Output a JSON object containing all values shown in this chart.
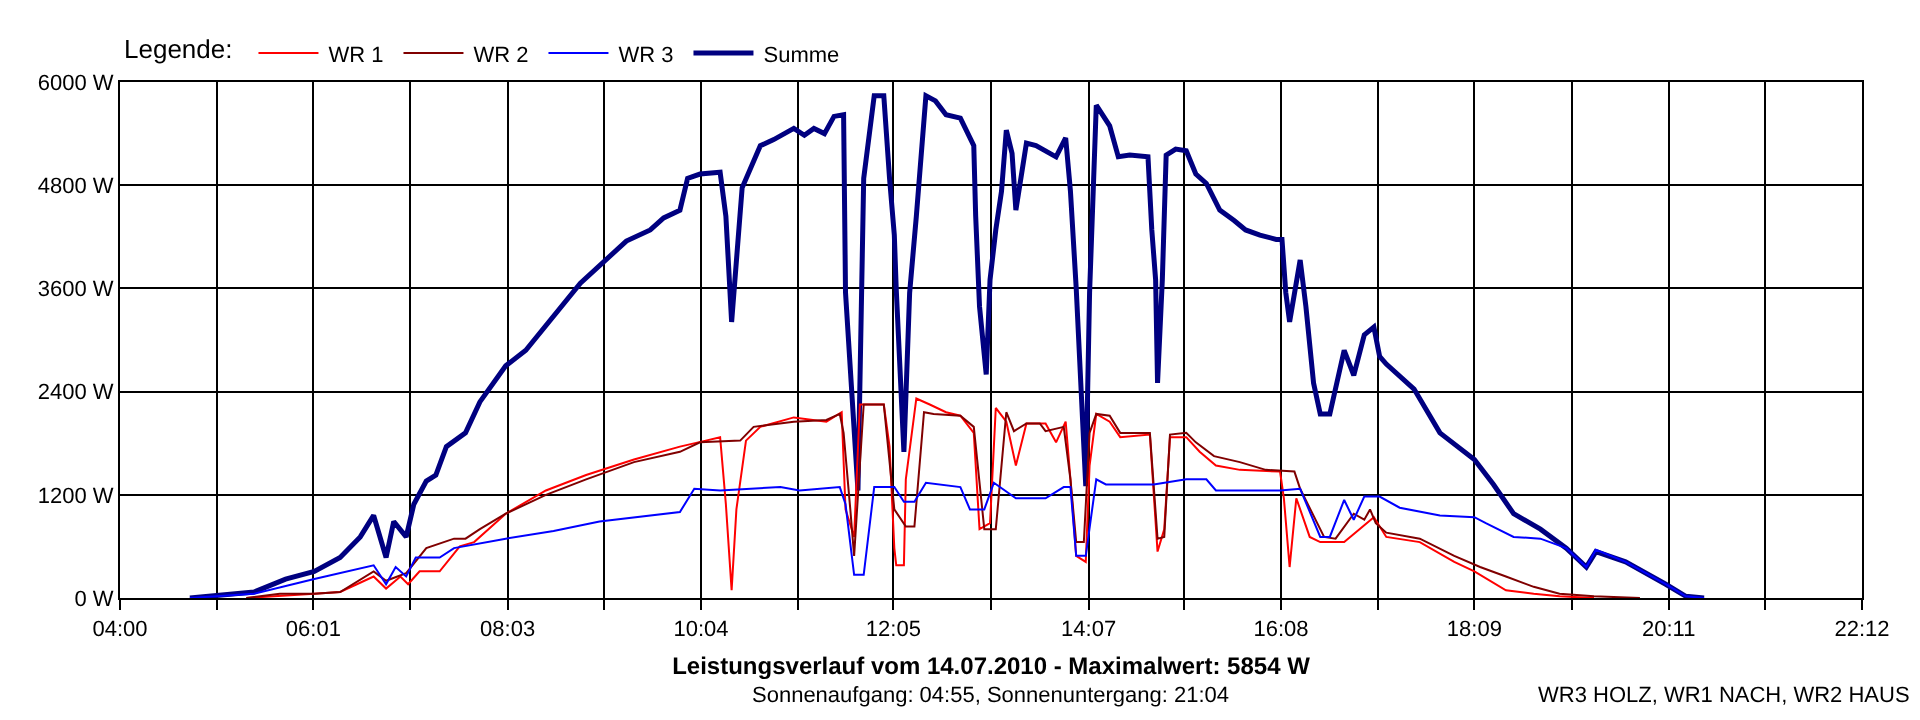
{
  "chart_data": {
    "type": "line",
    "title": "Leistungsverlauf vom 14.07.2010 - Maximalwert: 5854 W",
    "subtitle": "Sonnenaufgang: 04:55, Sonnenuntergang: 21:04",
    "annotations": [
      "WR3 HOLZ, WR1 NACH, WR2 HAUS"
    ],
    "legend_title": "Legende:",
    "legend": "top left",
    "grid": true,
    "xlim": [
      4,
      22.2
    ],
    "xticks": [
      {
        "value": 4,
        "label": "04:00"
      },
      {
        "value": 5.01,
        "label": null
      },
      {
        "value": 6.02,
        "label": "06:01"
      },
      {
        "value": 7.03,
        "label": null
      },
      {
        "value": 8.05,
        "label": "08:03"
      },
      {
        "value": 9.06,
        "label": null
      },
      {
        "value": 10.07,
        "label": "10:04"
      },
      {
        "value": 11.08,
        "label": null
      },
      {
        "value": 12.08,
        "label": "12:05"
      },
      {
        "value": 13.1,
        "label": null
      },
      {
        "value": 14.12,
        "label": "14:07"
      },
      {
        "value": 15.12,
        "label": null
      },
      {
        "value": 16.13,
        "label": "16:08"
      },
      {
        "value": 17.14,
        "label": null
      },
      {
        "value": 18.15,
        "label": "18:09"
      },
      {
        "value": 19.17,
        "label": null
      },
      {
        "value": 20.18,
        "label": "20:11"
      },
      {
        "value": 21.19,
        "label": null
      },
      {
        "value": 22.2,
        "label": "22:12"
      }
    ],
    "ylim": [
      0,
      6000
    ],
    "yticks": [
      {
        "value": 0,
        "label": "0 W"
      },
      {
        "value": 1200,
        "label": "1200 W"
      },
      {
        "value": 2400,
        "label": "2400 W"
      },
      {
        "value": 3600,
        "label": "3600 W"
      },
      {
        "value": 4800,
        "label": "4800 W"
      },
      {
        "value": 6000,
        "label": "6000 W"
      }
    ],
    "series": [
      {
        "name": "WR 1",
        "color": "#ff0000",
        "x": [
          5.32,
          6.03,
          6.3,
          6.65,
          6.78,
          6.93,
          7.01,
          7.13,
          7.34,
          7.55,
          7.7,
          8.03,
          8.45,
          8.87,
          9.37,
          9.85,
          10.12,
          10.27,
          10.33,
          10.39,
          10.44,
          10.54,
          10.69,
          11.04,
          11.38,
          11.54,
          11.58,
          11.67,
          11.73,
          11.98,
          12.04,
          12.09,
          12.11,
          12.19,
          12.21,
          12.32,
          12.46,
          12.63,
          12.78,
          12.92,
          12.98,
          13.09,
          13.15,
          13.26,
          13.36,
          13.47,
          13.67,
          13.78,
          13.88,
          13.93,
          13.99,
          14.09,
          14.13,
          14.2,
          14.34,
          14.45,
          14.76,
          14.84,
          14.91,
          14.97,
          15.14,
          15.28,
          15.45,
          15.7,
          16.12,
          16.16,
          16.22,
          16.29,
          16.43,
          16.54,
          16.79,
          16.95,
          17.1,
          17.23,
          17.58,
          17.94,
          18.15,
          18.48,
          18.77,
          19.04,
          19.4
        ],
        "values": [
          0,
          50,
          70,
          250,
          110,
          250,
          160,
          310,
          310,
          600,
          650,
          980,
          1250,
          1430,
          1610,
          1760,
          1830,
          1870,
          1090,
          90,
          1030,
          1830,
          1990,
          2100,
          2050,
          2160,
          1030,
          710,
          2250,
          2250,
          1760,
          580,
          380,
          380,
          1380,
          2320,
          2250,
          2160,
          2120,
          1920,
          800,
          870,
          2210,
          2050,
          1540,
          2030,
          2030,
          1810,
          2050,
          1380,
          490,
          420,
          1540,
          2140,
          2050,
          1870,
          1900,
          540,
          800,
          1870,
          1870,
          1700,
          1540,
          1490,
          1470,
          1160,
          360,
          1160,
          710,
          650,
          650,
          800,
          940,
          710,
          650,
          420,
          310,
          90,
          50,
          20,
          0
        ]
      },
      {
        "name": "WR 2",
        "color": "#800000",
        "x": [
          5.32,
          5.67,
          6.03,
          6.3,
          6.65,
          6.78,
          6.99,
          7.2,
          7.49,
          7.61,
          7.76,
          8.03,
          8.45,
          8.87,
          9.37,
          9.85,
          10.06,
          10.48,
          10.62,
          11.04,
          11.38,
          11.52,
          11.56,
          11.63,
          11.67,
          11.77,
          11.98,
          12.09,
          12.21,
          12.3,
          12.4,
          12.5,
          12.78,
          12.92,
          13.03,
          13.15,
          13.26,
          13.34,
          13.47,
          13.61,
          13.67,
          13.86,
          13.93,
          13.99,
          14.07,
          14.13,
          14.2,
          14.34,
          14.45,
          14.76,
          14.84,
          14.91,
          14.97,
          15.14,
          15.24,
          15.43,
          15.7,
          15.97,
          16.27,
          16.33,
          16.58,
          16.7,
          16.89,
          17.0,
          17.06,
          17.12,
          17.23,
          17.58,
          17.94,
          18.21,
          18.48,
          18.77,
          19.04,
          19.4,
          19.88
        ],
        "values": [
          0,
          50,
          50,
          70,
          310,
          200,
          290,
          580,
          690,
          690,
          800,
          980,
          1200,
          1380,
          1580,
          1700,
          1810,
          1830,
          1990,
          2050,
          2070,
          2140,
          1920,
          1030,
          490,
          2250,
          2250,
          1030,
          830,
          830,
          2160,
          2140,
          2120,
          1990,
          800,
          800,
          2160,
          1940,
          2030,
          2030,
          1940,
          1990,
          1380,
          650,
          650,
          1920,
          2140,
          2120,
          1920,
          1920,
          690,
          710,
          1900,
          1920,
          1810,
          1650,
          1580,
          1490,
          1470,
          1270,
          710,
          690,
          980,
          910,
          1030,
          870,
          760,
          690,
          490,
          360,
          250,
          130,
          50,
          20,
          0
        ]
      },
      {
        "name": "WR 3",
        "color": "#0000ff",
        "x": [
          4.73,
          5.4,
          6.03,
          6.65,
          6.78,
          6.88,
          6.99,
          7.09,
          7.34,
          7.49,
          8.03,
          8.53,
          9.01,
          9.85,
          10.0,
          10.27,
          10.9,
          11.1,
          11.52,
          11.58,
          11.67,
          11.77,
          11.88,
          12.09,
          12.19,
          12.3,
          12.42,
          12.78,
          12.88,
          13.03,
          13.13,
          13.36,
          13.67,
          13.86,
          13.93,
          13.99,
          14.09,
          14.2,
          14.3,
          14.8,
          15.14,
          15.35,
          15.45,
          16.12,
          16.33,
          16.54,
          16.64,
          16.79,
          16.89,
          17.0,
          17.16,
          17.37,
          17.79,
          18.15,
          18.27,
          18.56,
          18.84,
          19.11,
          19.32,
          19.42,
          19.73,
          20.15,
          20.36,
          20.55
        ],
        "values": [
          0,
          50,
          220,
          380,
          160,
          360,
          250,
          470,
          470,
          580,
          690,
          780,
          890,
          1000,
          1270,
          1250,
          1290,
          1250,
          1290,
          1090,
          270,
          270,
          1290,
          1290,
          1120,
          1120,
          1340,
          1290,
          1030,
          1030,
          1340,
          1160,
          1160,
          1290,
          1290,
          490,
          490,
          1380,
          1320,
          1320,
          1380,
          1380,
          1250,
          1250,
          1270,
          710,
          710,
          1140,
          910,
          1180,
          1180,
          1050,
          960,
          940,
          870,
          710,
          690,
          580,
          360,
          560,
          420,
          160,
          20,
          0
        ]
      },
      {
        "name": "Summe",
        "color": "#000080",
        "x": [
          4.73,
          5.4,
          5.73,
          6.03,
          6.3,
          6.51,
          6.65,
          6.78,
          6.86,
          6.99,
          7.07,
          7.2,
          7.3,
          7.41,
          7.61,
          7.76,
          8.03,
          8.24,
          8.81,
          9.29,
          9.54,
          9.68,
          9.85,
          9.93,
          10.06,
          10.27,
          10.33,
          10.39,
          10.5,
          10.69,
          10.83,
          11.04,
          11.15,
          11.25,
          11.36,
          11.46,
          11.56,
          11.58,
          11.71,
          11.77,
          11.88,
          11.98,
          12.04,
          12.09,
          12.11,
          12.19,
          12.25,
          12.32,
          12.42,
          12.52,
          12.63,
          12.78,
          12.92,
          12.94,
          12.98,
          13.05,
          13.09,
          13.15,
          13.21,
          13.26,
          13.32,
          13.36,
          13.47,
          13.57,
          13.78,
          13.88,
          13.93,
          13.99,
          14.09,
          14.13,
          14.2,
          14.34,
          14.43,
          14.55,
          14.74,
          14.78,
          14.82,
          14.84,
          14.89,
          14.93,
          15.03,
          15.14,
          15.24,
          15.35,
          15.49,
          15.64,
          15.76,
          15.91,
          16.08,
          16.14,
          16.18,
          16.22,
          16.33,
          16.39,
          16.47,
          16.54,
          16.64,
          16.79,
          16.89,
          17.0,
          17.1,
          17.16,
          17.23,
          17.52,
          17.79,
          18.15,
          18.35,
          18.56,
          18.84,
          19.11,
          19.32,
          19.42,
          19.73,
          20.15,
          20.36,
          20.55
        ],
        "values": [
          0,
          70,
          220,
          310,
          470,
          710,
          960,
          470,
          890,
          710,
          1090,
          1360,
          1430,
          1760,
          1920,
          2280,
          2700,
          2880,
          3660,
          4150,
          4280,
          4420,
          4510,
          4880,
          4930,
          4950,
          4440,
          3210,
          4770,
          5260,
          5330,
          5460,
          5380,
          5460,
          5400,
          5600,
          5620,
          3550,
          1250,
          4880,
          5840,
          5840,
          4880,
          4220,
          3590,
          1700,
          3550,
          4440,
          5840,
          5780,
          5620,
          5580,
          5260,
          4440,
          3390,
          2600,
          3700,
          4280,
          4730,
          5440,
          5170,
          4510,
          5290,
          5260,
          5130,
          5350,
          4730,
          3610,
          1300,
          3550,
          5730,
          5490,
          5130,
          5150,
          5130,
          4280,
          3700,
          2500,
          3700,
          5150,
          5220,
          5200,
          4930,
          4820,
          4510,
          4390,
          4280,
          4220,
          4170,
          4170,
          3550,
          3210,
          3930,
          3390,
          2500,
          2140,
          2140,
          2880,
          2590,
          3060,
          3150,
          2810,
          2720,
          2430,
          1920,
          1610,
          1320,
          980,
          800,
          580,
          360,
          540,
          420,
          160,
          20,
          0
        ]
      }
    ]
  }
}
